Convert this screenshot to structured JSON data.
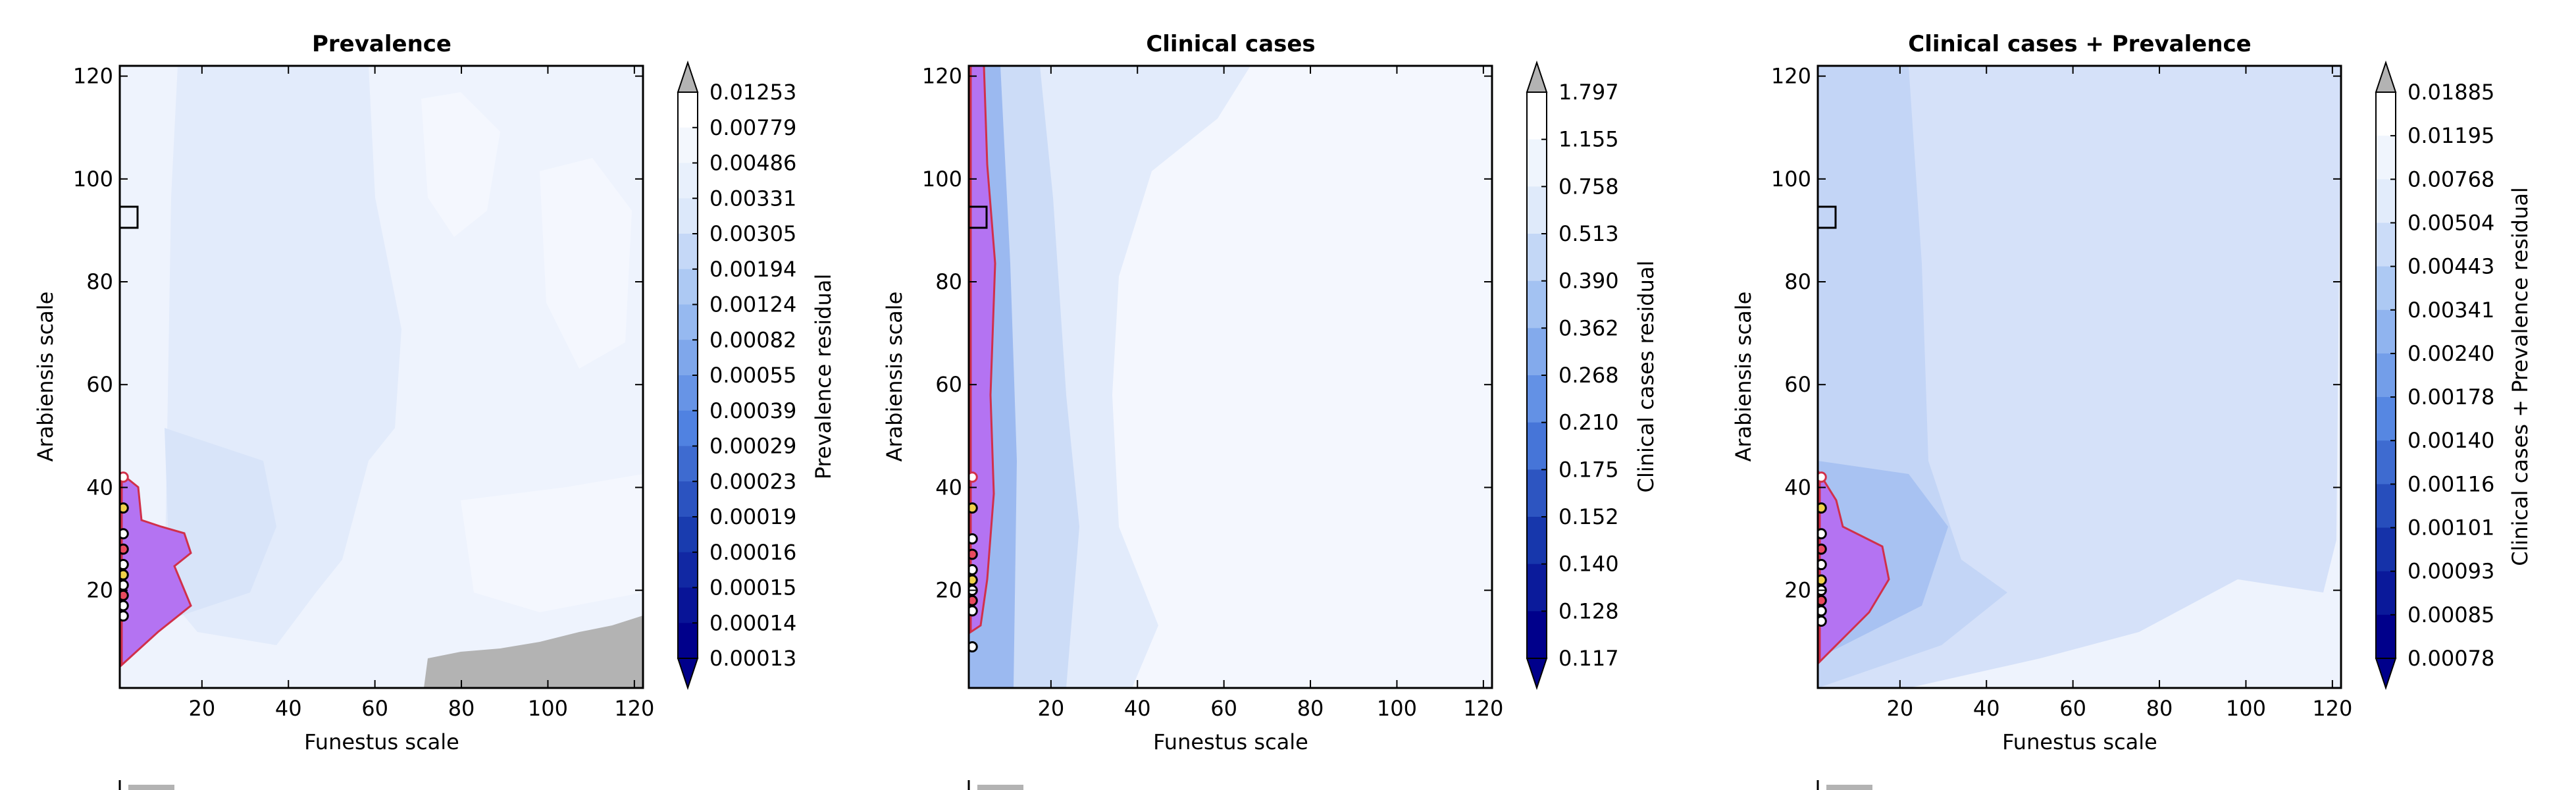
{
  "chart_data": [
    {
      "type": "heatmap",
      "title": "Prevalence",
      "xlabel": "Funestus scale",
      "ylabel": "Arabiensis scale",
      "xlim": [
        1,
        122
      ],
      "ylim": [
        1,
        122
      ],
      "xticks": [
        20,
        40,
        60,
        80,
        100,
        120
      ],
      "yticks": [
        20,
        40,
        60,
        80,
        100,
        120
      ],
      "colorbar": {
        "label": "Prevalence residual",
        "levels": [
          "0.00013",
          "0.00014",
          "0.00015",
          "0.00016",
          "0.00019",
          "0.00023",
          "0.00029",
          "0.00039",
          "0.00055",
          "0.00082",
          "0.00124",
          "0.00194",
          "0.00305",
          "0.00331",
          "0.00486",
          "0.00779",
          "0.01253"
        ],
        "extend": "both"
      },
      "highlight_region": {
        "x_max": 16,
        "y_min": 5,
        "y_max": 38
      },
      "saturated_region": {
        "x_min": 72,
        "y_max": 14
      },
      "marker_box": {
        "x": 3,
        "y": 92
      },
      "points_y": [
        42,
        36,
        31,
        28,
        25,
        23,
        21,
        19,
        17,
        15
      ]
    },
    {
      "type": "heatmap",
      "title": "Clinical cases",
      "xlabel": "Funestus scale",
      "ylabel": "Arabiensis scale",
      "xlim": [
        1,
        122
      ],
      "ylim": [
        1,
        122
      ],
      "xticks": [
        20,
        40,
        60,
        80,
        100,
        120
      ],
      "yticks": [
        20,
        40,
        60,
        80,
        100,
        120
      ],
      "colorbar": {
        "label": "Clinical cases residual",
        "levels": [
          "0.117",
          "0.128",
          "0.140",
          "0.152",
          "0.175",
          "0.210",
          "0.268",
          "0.362",
          "0.390",
          "0.513",
          "0.758",
          "1.155",
          "1.797"
        ],
        "extend": "both"
      },
      "highlight_region": {
        "x_max": 6,
        "y_min": 12,
        "y_max": 122
      },
      "marker_box": {
        "x": 3,
        "y": 92
      },
      "points_y": [
        42,
        36,
        30,
        27,
        24,
        22,
        20,
        18,
        16,
        9
      ]
    },
    {
      "type": "heatmap",
      "title": "Clinical cases + Prevalence",
      "xlabel": "Funestus scale",
      "ylabel": "Arabiensis scale",
      "xlim": [
        1,
        122
      ],
      "ylim": [
        1,
        122
      ],
      "xticks": [
        20,
        40,
        60,
        80,
        100,
        120
      ],
      "yticks": [
        20,
        40,
        60,
        80,
        100,
        120
      ],
      "colorbar": {
        "label": "Clinical cases + Prevalence residual",
        "levels": [
          "0.00078",
          "0.00085",
          "0.00093",
          "0.00101",
          "0.00116",
          "0.00140",
          "0.00178",
          "0.00240",
          "0.00341",
          "0.00443",
          "0.00504",
          "0.00768",
          "0.01195",
          "0.01885"
        ],
        "extend": "both"
      },
      "highlight_region": {
        "x_max": 14,
        "y_min": 5,
        "y_max": 40
      },
      "marker_box": {
        "x": 3,
        "y": 92
      },
      "points_y": [
        42,
        36,
        31,
        28,
        25,
        22,
        20,
        18,
        16,
        14
      ]
    }
  ]
}
